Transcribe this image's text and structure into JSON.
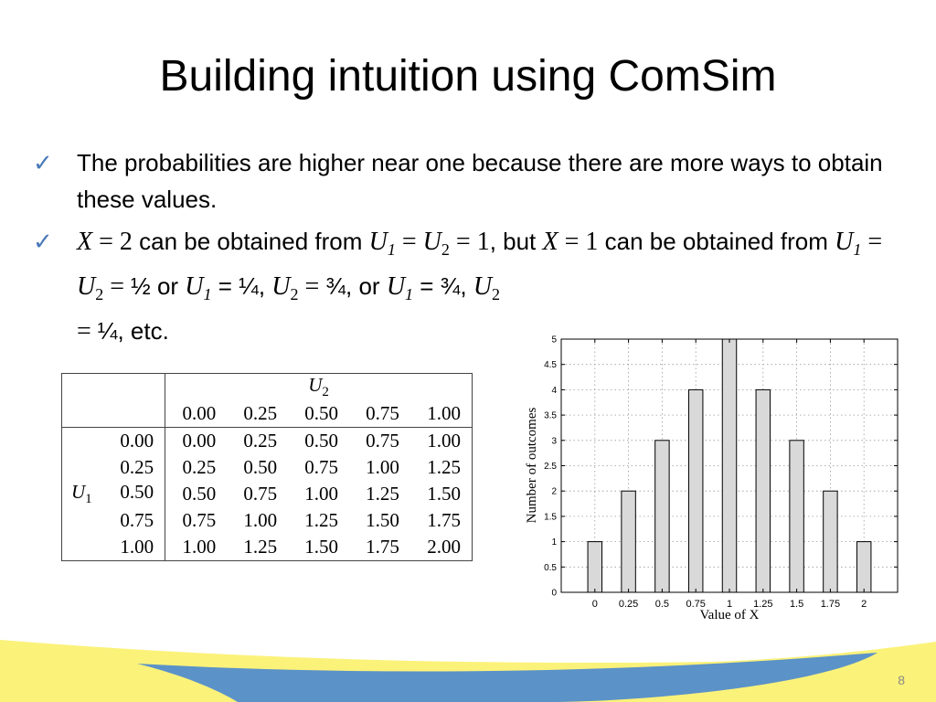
{
  "slide": {
    "title": "Building intuition using ComSim",
    "page_number": "8"
  },
  "bullets": {
    "b1": "The probabilities are higher near one because there are more ways to obtain these values.",
    "b2": {
      "t1": "X",
      "t2": " = ",
      "t3": "2",
      "t4": " can be obtained from ",
      "t5": "U",
      "t6": "1",
      "t7": " = ",
      "t8": "U",
      "t9": "2",
      "t10": " = ",
      "t11": "1",
      "t12": ", but ",
      "t13": "X",
      "t14": " = ",
      "t15": "1",
      "t16": " can be obtained from ",
      "t17": "U",
      "t18": "1",
      "t19": " = ",
      "t20": "U",
      "t21": "2",
      "t22": " = ",
      "t23": "½",
      "t24": " or ",
      "t25": "U",
      "t26": "1",
      "t27": " = ¼, ",
      "t28": "U",
      "t29": "2",
      "t30": " = ",
      "t31": "¾",
      "t32": ", or ",
      "t33": "U",
      "t34": "1",
      "t35": " = ¾, ",
      "t36": "U",
      "t37": "2",
      "t38": " = ",
      "t39": "¼",
      "t40": ", etc."
    }
  },
  "table": {
    "col_var": "U",
    "col_var_sub": "2",
    "row_var": "U",
    "row_var_sub": "1",
    "columns": [
      "0.00",
      "0.25",
      "0.50",
      "0.75",
      "1.00"
    ],
    "rows": [
      {
        "label": "0.00",
        "cells": [
          "0.00",
          "0.25",
          "0.50",
          "0.75",
          "1.00"
        ]
      },
      {
        "label": "0.25",
        "cells": [
          "0.25",
          "0.50",
          "0.75",
          "1.00",
          "1.25"
        ]
      },
      {
        "label": "0.50",
        "cells": [
          "0.50",
          "0.75",
          "1.00",
          "1.25",
          "1.50"
        ]
      },
      {
        "label": "0.75",
        "cells": [
          "0.75",
          "1.00",
          "1.25",
          "1.50",
          "1.75"
        ]
      },
      {
        "label": "1.00",
        "cells": [
          "1.00",
          "1.25",
          "1.50",
          "1.75",
          "2.00"
        ]
      }
    ]
  },
  "chart_data": {
    "type": "bar",
    "categories": [
      "0",
      "0.25",
      "0.5",
      "0.75",
      "1",
      "1.25",
      "1.5",
      "1.75",
      "2"
    ],
    "values": [
      1,
      2,
      3,
      4,
      5,
      4,
      3,
      2,
      1
    ],
    "xlabel": "Value of X",
    "ylabel": "Number of outcomes",
    "ylim": [
      0,
      5
    ],
    "yticks": [
      "0",
      "0.5",
      "1",
      "1.5",
      "2",
      "2.5",
      "3",
      "3.5",
      "4",
      "4.5",
      "5"
    ],
    "grid": true,
    "bar_color": "#d9d9d9"
  },
  "theme": {
    "check_color": "#4a7ab8",
    "wave_yellow": "#fbf27a",
    "wave_blue": "#5b92c8"
  }
}
